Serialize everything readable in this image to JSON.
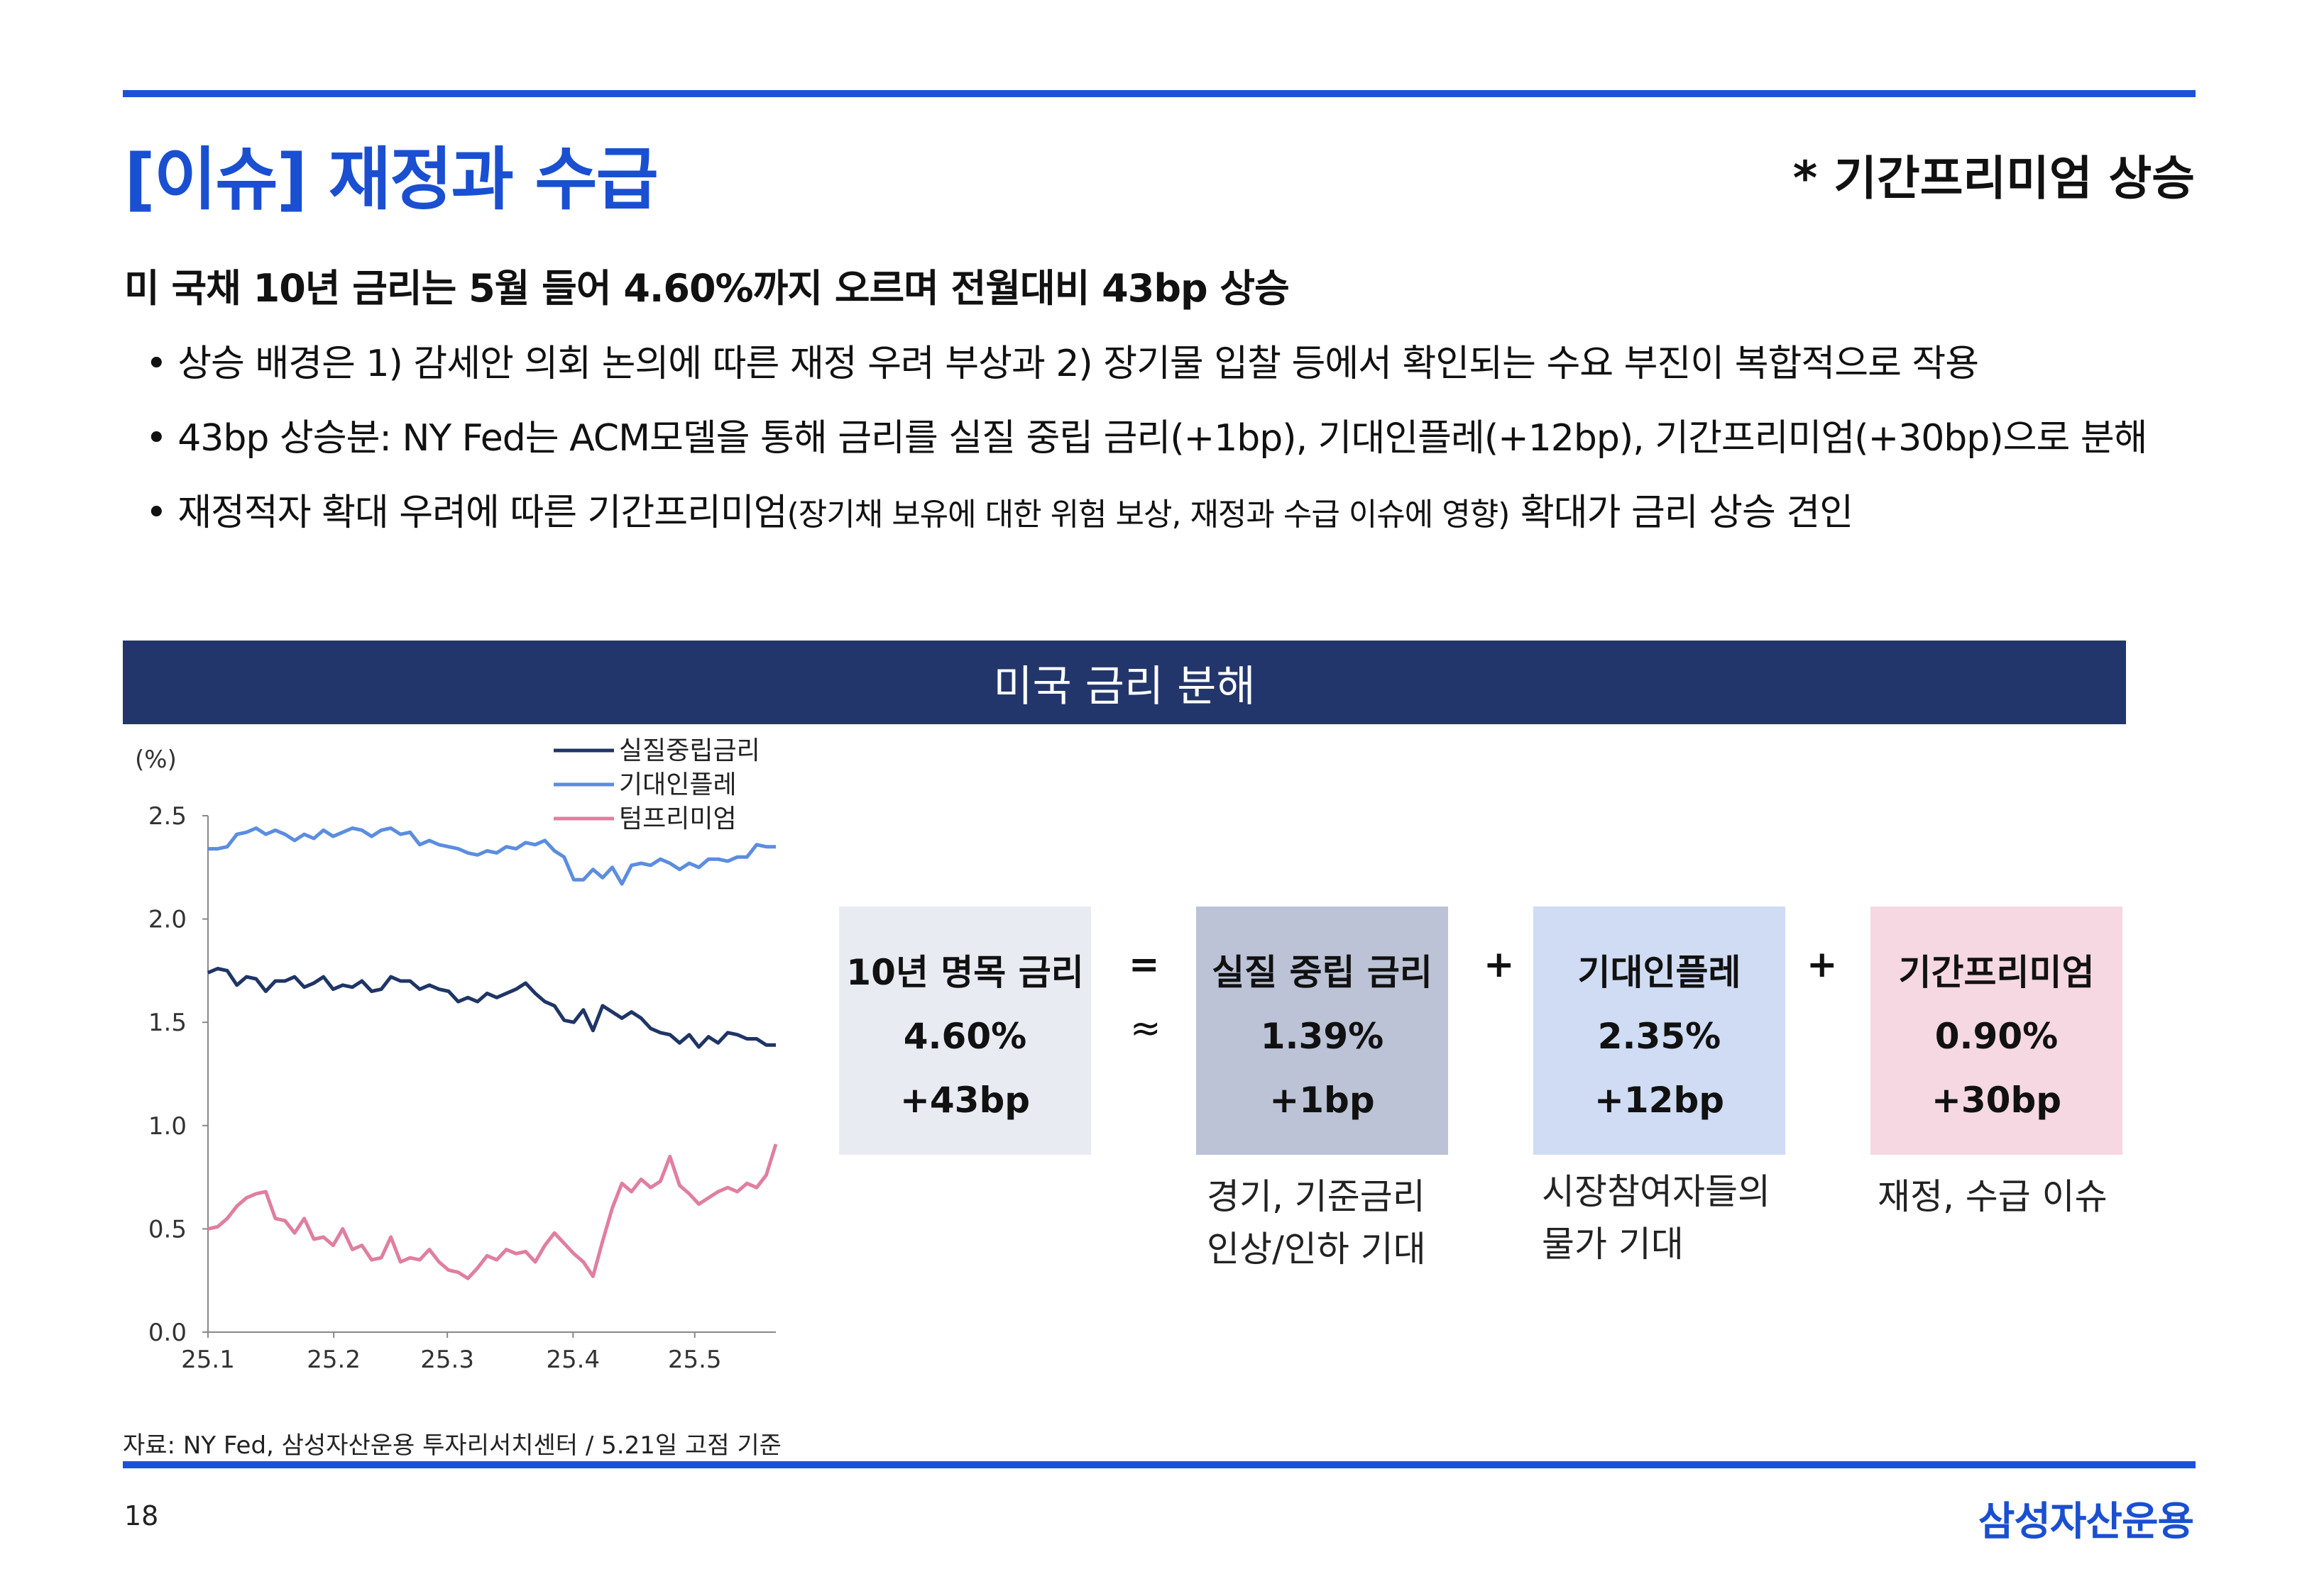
{
  "header": {
    "title": "[이슈] 재정과 수급",
    "tag": "* 기간프리미엄 상승"
  },
  "headline": "미 국채 10년 금리는 5월 들어 4.60%까지 오르며 전월대비 43bp 상승",
  "bullets": {
    "b1": "• 상승 배경은 1) 감세안 의회 논의에 따른 재정 우려 부상과 2) 장기물 입찰 등에서 확인되는 수요 부진이 복합적으로 작용",
    "b2": "• 43bp 상승분: NY Fed는 ACM모델을 통해 금리를 실질 중립 금리(+1bp), 기대인플레(+12bp), 기간프리미엄(+30bp)으로 분해",
    "b3a": "• 재정적자 확대 우려에 따른 기간프리미엄",
    "b3b": "(장기채 보유에 대한 위험 보상, 재정과 수급 이슈에 영향)",
    "b3c": " 확대가 금리 상승 견인"
  },
  "banner": "미국 금리 분해",
  "chart_data": {
    "type": "line",
    "title": "",
    "ylabel": "(%)",
    "xlabel": "",
    "ylim": [
      0.0,
      2.5
    ],
    "yticks": [
      "0.0",
      "0.5",
      "1.0",
      "1.5",
      "2.0",
      "2.5"
    ],
    "xticks": [
      "25.1",
      "25.2",
      "25.3",
      "25.4",
      "25.5"
    ],
    "x_range": [
      "2025-01-01",
      "2025-05-21"
    ],
    "legend_position": "top-center",
    "series": [
      {
        "name": "실질중립금리",
        "color": "#1f3566",
        "values": [
          1.74,
          1.76,
          1.75,
          1.68,
          1.72,
          1.71,
          1.65,
          1.7,
          1.7,
          1.72,
          1.67,
          1.69,
          1.72,
          1.66,
          1.68,
          1.67,
          1.7,
          1.65,
          1.66,
          1.72,
          1.7,
          1.7,
          1.66,
          1.68,
          1.66,
          1.65,
          1.6,
          1.62,
          1.6,
          1.64,
          1.62,
          1.64,
          1.66,
          1.69,
          1.64,
          1.6,
          1.58,
          1.51,
          1.5,
          1.56,
          1.46,
          1.58,
          1.55,
          1.52,
          1.55,
          1.52,
          1.47,
          1.45,
          1.44,
          1.4,
          1.44,
          1.38,
          1.43,
          1.4,
          1.45,
          1.44,
          1.42,
          1.42,
          1.39,
          1.39
        ]
      },
      {
        "name": "기대인플레",
        "color": "#5b8de0",
        "values": [
          2.34,
          2.34,
          2.35,
          2.41,
          2.42,
          2.44,
          2.41,
          2.43,
          2.41,
          2.38,
          2.41,
          2.39,
          2.43,
          2.4,
          2.42,
          2.44,
          2.43,
          2.4,
          2.43,
          2.44,
          2.41,
          2.42,
          2.36,
          2.38,
          2.36,
          2.35,
          2.34,
          2.32,
          2.31,
          2.33,
          2.32,
          2.35,
          2.34,
          2.37,
          2.36,
          2.38,
          2.33,
          2.3,
          2.19,
          2.19,
          2.24,
          2.2,
          2.25,
          2.17,
          2.26,
          2.27,
          2.26,
          2.29,
          2.27,
          2.24,
          2.27,
          2.25,
          2.29,
          2.29,
          2.28,
          2.3,
          2.3,
          2.36,
          2.35,
          2.35
        ]
      },
      {
        "name": "텀프리미엄",
        "color": "#e07fa0",
        "values": [
          0.5,
          0.51,
          0.55,
          0.61,
          0.65,
          0.67,
          0.68,
          0.55,
          0.54,
          0.48,
          0.55,
          0.45,
          0.46,
          0.42,
          0.5,
          0.4,
          0.42,
          0.35,
          0.36,
          0.46,
          0.34,
          0.36,
          0.35,
          0.4,
          0.34,
          0.3,
          0.29,
          0.26,
          0.31,
          0.37,
          0.35,
          0.4,
          0.38,
          0.39,
          0.34,
          0.42,
          0.48,
          0.43,
          0.38,
          0.34,
          0.27,
          0.44,
          0.6,
          0.72,
          0.68,
          0.74,
          0.7,
          0.73,
          0.85,
          0.71,
          0.67,
          0.62,
          0.65,
          0.68,
          0.7,
          0.68,
          0.72,
          0.7,
          0.76,
          0.91
        ]
      }
    ]
  },
  "decomposition": {
    "boxes": [
      {
        "title": "10년 명목 금리",
        "value": "4.60%",
        "change": "+43bp",
        "color": "#e9ebf3"
      },
      {
        "title": "실질 중립 금리",
        "value": "1.39%",
        "change": "+1bp",
        "color": "#bcc3d6"
      },
      {
        "title": "기대인플레",
        "value": "2.35%",
        "change": "+12bp",
        "color": "#cfdcf3"
      },
      {
        "title": "기간프리미엄",
        "value": "0.90%",
        "change": "+30bp",
        "color": "#f5d8e1"
      }
    ],
    "equals": "=",
    "approx": "≈",
    "plus": "+",
    "notes": [
      "경기, 기준금리\n인상/인하 기대",
      "시장참여자들의\n물가 기대",
      "재정, 수급 이슈"
    ]
  },
  "footer": {
    "source": "자료: NY Fed, 삼성자산운용 투자리서치센터 / 5.21일 고점 기준",
    "page": "18",
    "logo": "삼성자산운용"
  }
}
